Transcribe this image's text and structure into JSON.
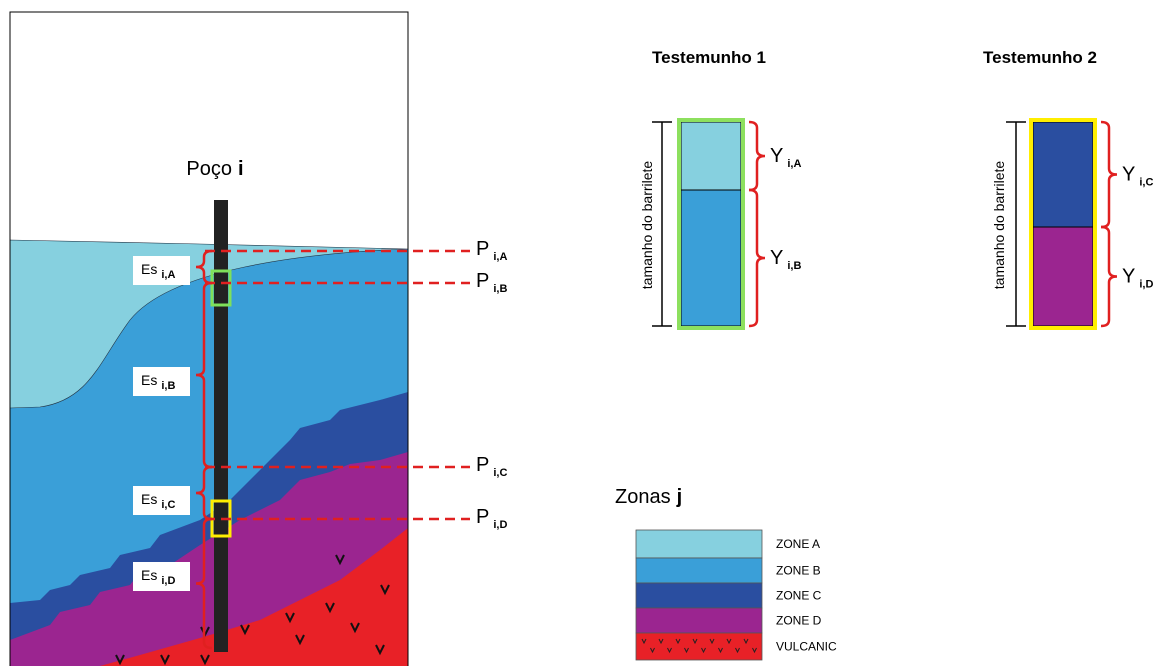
{
  "well": {
    "title": {
      "text": "Poço",
      "index": "i"
    }
  },
  "depth_labels": [
    {
      "symbol": "P",
      "sub": "i,A"
    },
    {
      "symbol": "P",
      "sub": "i,B"
    },
    {
      "symbol": "P",
      "sub": "i,C"
    },
    {
      "symbol": "P",
      "sub": "i,D"
    }
  ],
  "thickness_labels": [
    {
      "symbol": "Es",
      "sub": "i,A"
    },
    {
      "symbol": "Es",
      "sub": "i,B"
    },
    {
      "symbol": "Es",
      "sub": "i,C"
    },
    {
      "symbol": "Es",
      "sub": "i,D"
    }
  ],
  "cores": [
    {
      "title": "Testemunho 1",
      "length_label": "tamanho do barrilete",
      "segments": [
        {
          "symbol": "Y",
          "sub": "i,A"
        },
        {
          "symbol": "Y",
          "sub": "i,B"
        }
      ]
    },
    {
      "title": "Testemunho 2",
      "length_label": "tamanho do barrilete",
      "segments": [
        {
          "symbol": "Y",
          "sub": "i,C"
        },
        {
          "symbol": "Y",
          "sub": "i,D"
        }
      ]
    }
  ],
  "legend": {
    "title": {
      "text": "Zonas",
      "index": "j"
    },
    "items": [
      "ZONE A",
      "ZONE B",
      "ZONE C",
      "ZONE D",
      "VULCANIC"
    ]
  }
}
